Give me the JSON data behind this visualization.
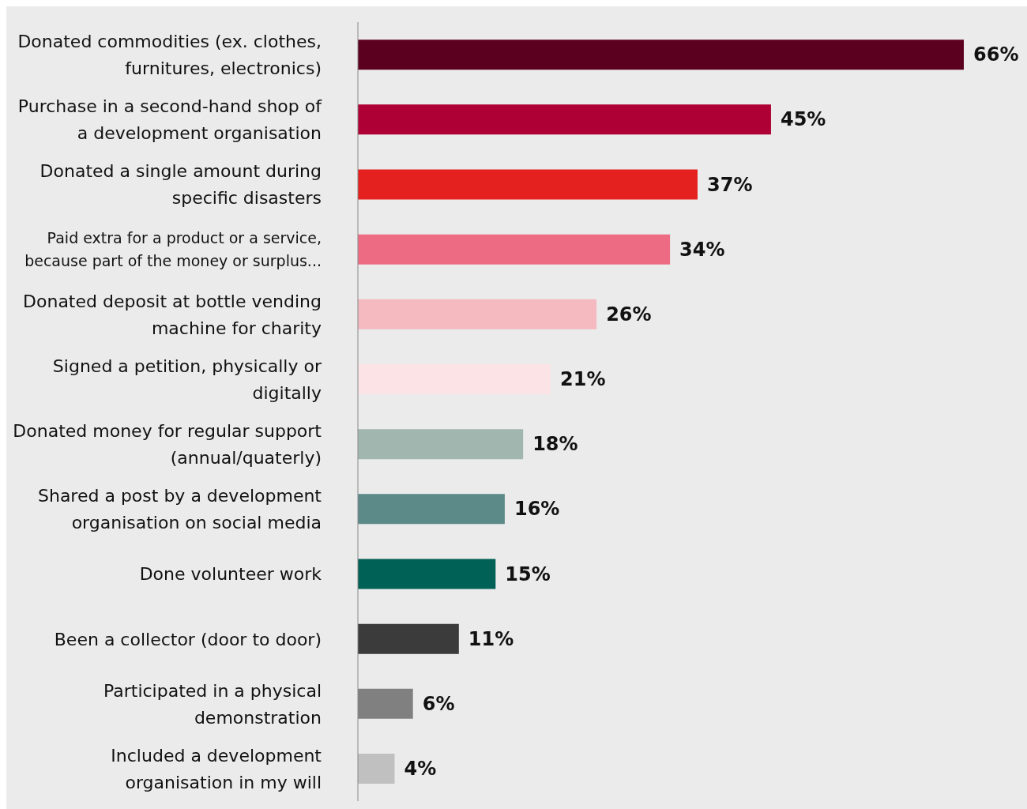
{
  "chart_data": {
    "type": "bar",
    "orientation": "horizontal",
    "categories": [
      "Donated commodities (ex. clothes, furnitures, electronics)",
      "Purchase in a second-hand shop of a development organisation",
      "Donated a single amount during specific disasters",
      "Paid extra for a product or a service, because part of the money or surplus...",
      "Donated deposit at bottle vending machine for charity",
      "Signed a petition, physically or digitally",
      "Donated money for regular support (annual/quaterly)",
      "Shared a post by a development organisation on social media",
      "Done volunteer work",
      "Been a collector (door to door)",
      "Participated in a physical demonstration",
      "Included a development organisation in my will"
    ],
    "values": [
      66,
      45,
      37,
      34,
      26,
      21,
      18,
      16,
      15,
      11,
      6,
      4
    ],
    "value_labels": [
      "66%",
      "45%",
      "37%",
      "34%",
      "26%",
      "21%",
      "18%",
      "16%",
      "15%",
      "11%",
      "6%",
      "4%"
    ],
    "colors": [
      "#5c0020",
      "#ae0035",
      "#e5211f",
      "#ed6c84",
      "#f5b9c0",
      "#fbe3e6",
      "#a1b6ae",
      "#5b8a88",
      "#006157",
      "#3b3b3b",
      "#808080",
      "#c0c0c0"
    ],
    "grid": false,
    "legend": false
  }
}
